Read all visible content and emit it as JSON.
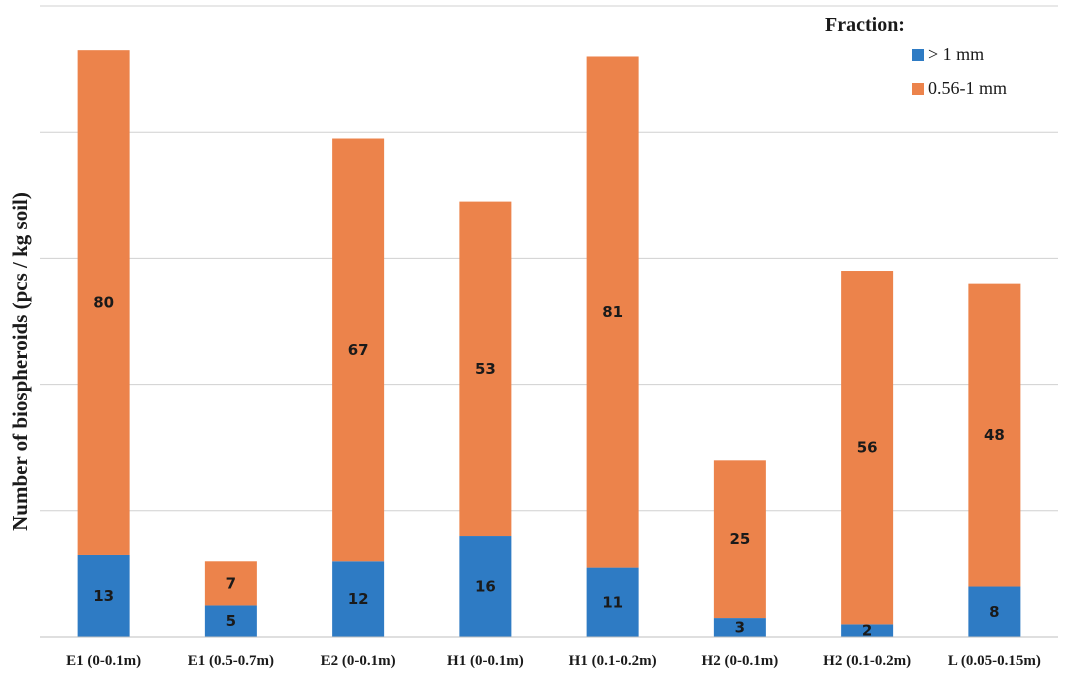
{
  "chart_data": {
    "type": "bar",
    "stacked": true,
    "categories": [
      "E1 (0-0.1m)",
      "E1 (0.5-0.7m)",
      "E2 (0-0.1m)",
      "H1 (0-0.1m)",
      "H1 (0.1-0.2m)",
      "H2 (0-0.1m)",
      "H2 (0.1-0.2m)",
      "L (0.05-0.15m)"
    ],
    "series": [
      {
        "name": "> 1 mm",
        "color": "#2e7bc4",
        "values": [
          13,
          5,
          12,
          16,
          11,
          3,
          2,
          8
        ]
      },
      {
        "name": "0.56-1 mm",
        "color": "#ec834b",
        "values": [
          80,
          7,
          67,
          53,
          81,
          25,
          56,
          48
        ]
      }
    ],
    "ylabel": "Number of biospheroids (pcs / kg soil)",
    "legend_title": "Fraction:",
    "legend_position": "top-right",
    "ylim": [
      0,
      100
    ],
    "grid": true,
    "y_ticks_labeled": false
  }
}
